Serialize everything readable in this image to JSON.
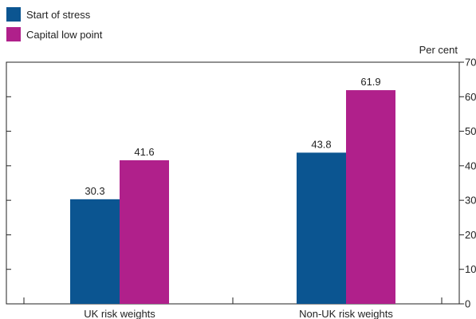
{
  "chart_data": {
    "type": "bar",
    "categories": [
      "UK risk weights",
      "Non-UK risk weights"
    ],
    "series": [
      {
        "name": "Start of stress",
        "values": [
          30.3,
          43.8
        ],
        "color": "#0b5591"
      },
      {
        "name": "Capital low point",
        "values": [
          41.6,
          61.9
        ],
        "color": "#b0208b"
      }
    ],
    "ylim": [
      0,
      70
    ],
    "yticks": [
      0,
      10,
      20,
      30,
      40,
      50,
      60,
      70
    ],
    "y_unit_label": "Per cent",
    "y_axis_side": "right",
    "data_labels": true,
    "legend_position": "top-left",
    "grid": false
  }
}
